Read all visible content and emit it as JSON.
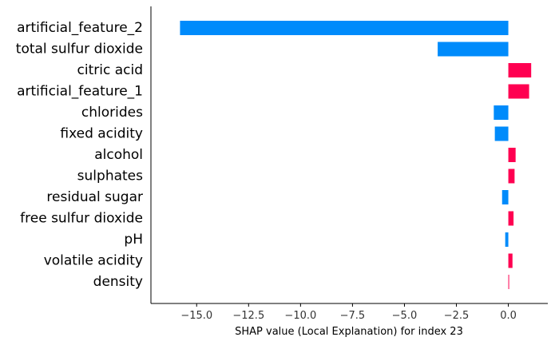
{
  "chart_data": {
    "type": "bar",
    "orientation": "horizontal",
    "categories": [
      "artificial_feature_2",
      "total sulfur dioxide",
      "citric acid",
      "artificial_feature_1",
      "chlorides",
      "fixed acidity",
      "alcohol",
      "sulphates",
      "residual sugar",
      "free sulfur dioxide",
      "pH",
      "volatile acidity",
      "density"
    ],
    "values": [
      -15.8,
      -3.4,
      1.1,
      1.0,
      -0.7,
      -0.65,
      0.35,
      0.3,
      -0.3,
      0.25,
      -0.15,
      0.2,
      0.03
    ],
    "xlabel": "SHAP value (Local Explanation) for index 23",
    "xlim": [
      -17.2,
      1.9
    ],
    "xticks": [
      -15.0,
      -12.5,
      -10.0,
      -7.5,
      -5.0,
      -2.5,
      0.0
    ],
    "xtick_labels": [
      "−15.0",
      "−12.5",
      "−10.0",
      "−7.5",
      "−5.0",
      "−2.5",
      "0.0"
    ],
    "colors": {
      "negative": "#008bfb",
      "positive": "#ff0051",
      "axis": "#000000"
    },
    "grid": false,
    "legend": "none"
  }
}
